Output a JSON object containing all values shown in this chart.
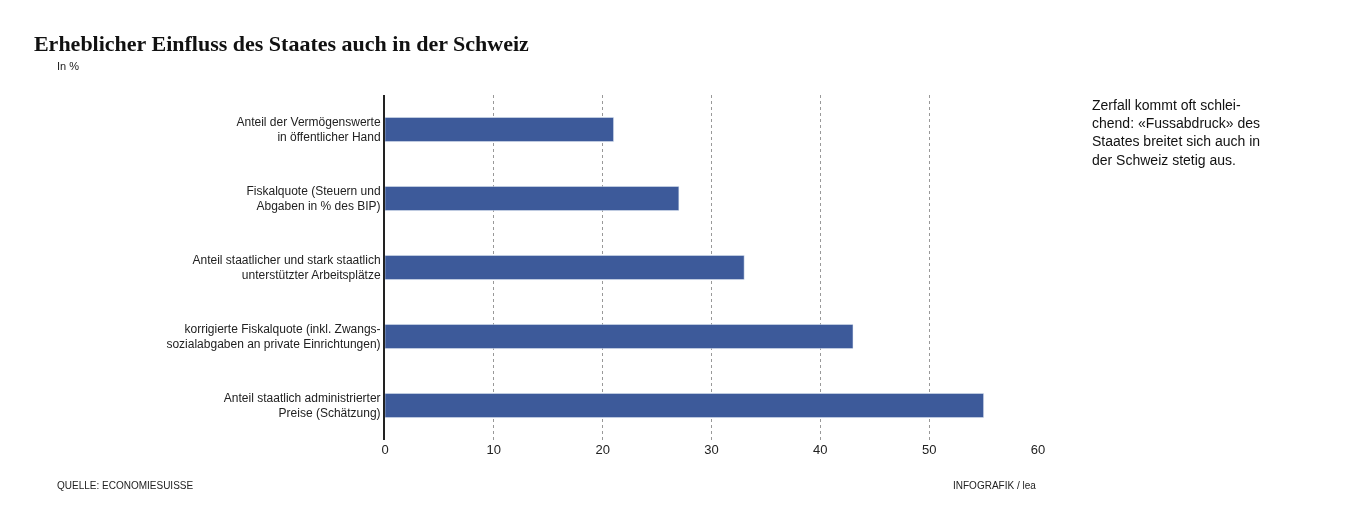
{
  "chart_data": {
    "type": "bar",
    "orientation": "horizontal",
    "title": "Erheblicher Einfluss des Staates auch in der Schweiz",
    "subtitle": "In %",
    "categories": [
      "Anteil der Vermögenswerte\nin öffentlicher Hand",
      "Fiskalquote (Steuern und\nAbgaben in % des BIP)",
      "Anteil staatlicher und stark staatlich\nunterstützter Arbeitsplätze",
      "korrigierte Fiskalquote (inkl. Zwangs-\nsozialabgaben an private Einrichtungen)",
      "Anteil staatlich administrierter\nPreise (Schätzung)"
    ],
    "values": [
      21,
      27,
      33,
      43,
      55
    ],
    "color": "#3d5a9a",
    "xlim": [
      0,
      60
    ],
    "xticks": [
      0,
      10,
      20,
      30,
      40,
      50,
      60
    ],
    "grid": "x",
    "annotations": [
      "QUELLE: ECONOMIESUISSE",
      "INFOGRAFIK / lea",
      "Zerfall kommt oft schlei-\nchend: «Fussabdruck» des\nStaates breitet sich auch in\nder Schweiz stetig aus."
    ]
  }
}
